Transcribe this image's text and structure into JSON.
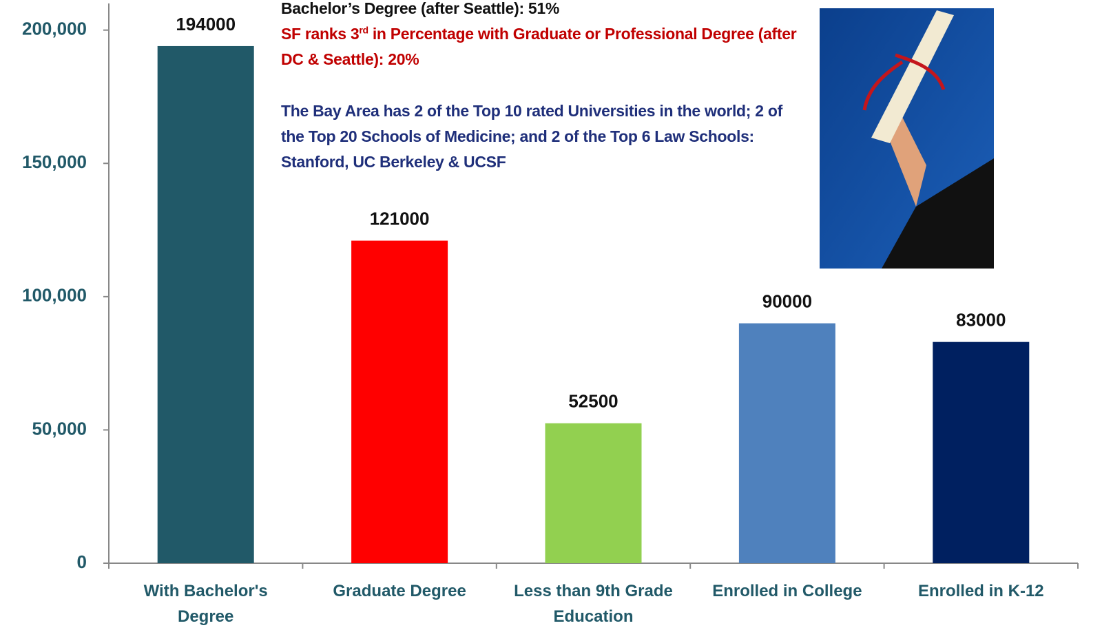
{
  "chart_data": {
    "type": "bar",
    "categories": [
      "With Bachelor's Degree",
      "Graduate Degree",
      "Less than 9th Grade Education",
      "Enrolled in College",
      "Enrolled in K-12"
    ],
    "values": [
      194000,
      121000,
      52500,
      90000,
      83000
    ],
    "colors": [
      "#215968",
      "#ff0000",
      "#92d050",
      "#4f81bd",
      "#002060"
    ],
    "ylim": [
      0,
      210000
    ],
    "yticks": [
      0,
      {
        "value": 50000,
        "label": "50,000"
      },
      {
        "value": 100000,
        "label": "100,000"
      },
      {
        "value": 150000,
        "label": "150,000"
      },
      {
        "value": 200000,
        "label": "200,000"
      }
    ],
    "annotations": [
      {
        "parts": [
          "Bachelor’s Degree (after Seattle): 51%"
        ],
        "color": "#111111"
      },
      {
        "parts": [
          "SF ranks 3",
          "rd",
          " in Percentage with Graduate or Professional Degree (after DC & Seattle): 20%"
        ],
        "color": "#c00000"
      },
      {
        "parts": [
          "The Bay Area has 2 of the Top 10 rated Universities in the world; 2 of the Top 20 Schools of Medicine; and 2 of the Top 6 Law Schools: Stanford, UC Berkeley & UCSF"
        ],
        "color": "#1f2f7a"
      }
    ]
  }
}
